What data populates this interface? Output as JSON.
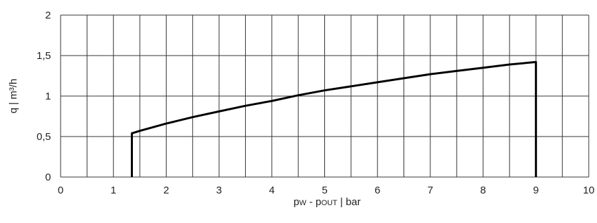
{
  "chart_data": {
    "type": "line",
    "xlabel": "pw - pOUT | bar",
    "xlabel_parts": {
      "p1": "p",
      "s1": "W",
      "mid": " - p",
      "s2": "OUT",
      "unit": " | bar"
    },
    "ylabel": "q | m³/h",
    "xlim": [
      0,
      10
    ],
    "ylim": [
      0,
      2
    ],
    "x_ticks": [
      "0",
      "1",
      "2",
      "3",
      "4",
      "5",
      "6",
      "7",
      "8",
      "9",
      "10"
    ],
    "y_ticks": [
      "0",
      "0,5",
      "1",
      "1,5",
      "2"
    ],
    "grid": true,
    "series": [
      {
        "x": [
          1.35,
          1.35,
          1.5,
          2,
          2.5,
          3,
          3.5,
          4,
          4.5,
          5,
          5.5,
          6,
          6.5,
          7,
          7.5,
          8,
          8.5,
          9,
          9
        ],
        "y": [
          0,
          0.54,
          0.57,
          0.66,
          0.74,
          0.81,
          0.88,
          0.94,
          1.01,
          1.07,
          1.12,
          1.17,
          1.22,
          1.27,
          1.31,
          1.35,
          1.39,
          1.42,
          0
        ]
      }
    ]
  }
}
